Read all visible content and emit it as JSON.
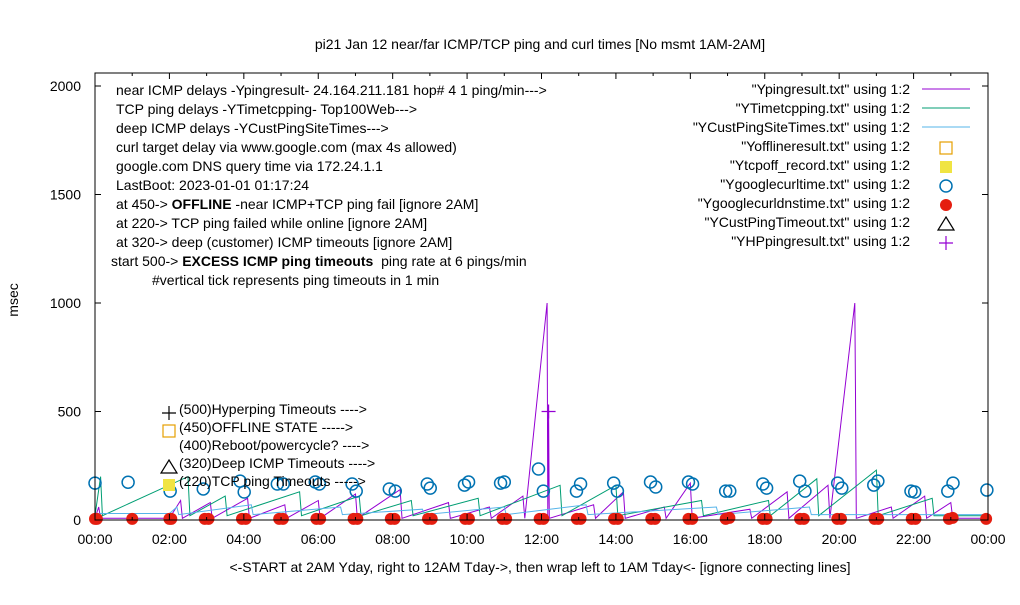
{
  "chart_data": {
    "type": "line",
    "title": "pi21 Jan 12  near/far ICMP/TCP ping and curl times [No msmt 1AM-2AM]",
    "xlabel": "<-START at 2AM Yday, right to 12AM Tday->, then wrap left to 1AM Tday<- [ignore connecting lines]",
    "ylabel": "msec",
    "xlim": [
      0,
      24
    ],
    "ylim": [
      0,
      2060
    ],
    "x_ticks": [
      "00:00",
      "02:00",
      "04:00",
      "06:00",
      "08:00",
      "10:00",
      "12:00",
      "14:00",
      "16:00",
      "18:00",
      "20:00",
      "22:00",
      "00:00"
    ],
    "y_ticks": [
      0,
      500,
      1000,
      1500,
      2000
    ],
    "grid": false,
    "legend_position": "top-right",
    "annotations": [
      "near ICMP delays -Ypingresult- 24.164.211.181 hop# 4 1 ping/min--->",
      "TCP ping delays -YTimetcpping- Top100Web--->",
      "deep ICMP delays -YCustPingSiteTimes--->",
      "curl target delay via www.google.com (max 4s allowed)",
      "google.com DNS query time via 172.24.1.1",
      "LastBoot: 2023-01-01 01:17:24"
    ],
    "notes": [
      {
        "pre": "at 450-> ",
        "bold": "OFFLINE",
        "post": " -near ICMP+TCP ping fail [ignore 2AM]"
      },
      {
        "pre": "at 220-> TCP ping failed while online [ignore 2AM]",
        "bold": "",
        "post": ""
      },
      {
        "pre": "at 320-> deep (customer) ICMP timeouts [ignore 2AM]",
        "bold": "",
        "post": ""
      },
      {
        "pre": "start 500-> ",
        "bold": "EXCESS ICMP ping timeouts",
        "post": "  ping rate at 6 pings/min"
      },
      {
        "pre": "#vertical tick represents ping timeouts in 1 min",
        "bold": "",
        "post": ""
      }
    ],
    "key_labels": [
      "(500)Hyperping Timeouts ---->",
      "(450)OFFLINE STATE ----->",
      "(400)Reboot/powercycle? ---->",
      "(320)Deep ICMP Timeouts ---->",
      "(220)TCP ping Timeouts ----->"
    ],
    "series": [
      {
        "name": "\"Ypingresult.txt\" using 1:2",
        "style": "line",
        "color": "#9400d3",
        "points": [
          [
            0,
            8
          ],
          [
            0.1,
            60
          ],
          [
            0.15,
            8
          ],
          [
            2.0,
            8
          ],
          [
            2.3,
            90
          ],
          [
            2.35,
            8
          ],
          [
            3.1,
            80
          ],
          [
            3.15,
            8
          ],
          [
            4.1,
            100
          ],
          [
            4.15,
            8
          ],
          [
            5.1,
            70
          ],
          [
            5.15,
            8
          ],
          [
            6.0,
            90
          ],
          [
            6.05,
            8
          ],
          [
            7.0,
            120
          ],
          [
            7.05,
            8
          ],
          [
            8.2,
            140
          ],
          [
            8.25,
            8
          ],
          [
            9.5,
            80
          ],
          [
            9.55,
            8
          ],
          [
            10.6,
            60
          ],
          [
            10.65,
            8
          ],
          [
            11.5,
            110
          ],
          [
            11.55,
            8
          ],
          [
            12.15,
            1000
          ],
          [
            12.17,
            8
          ],
          [
            12.19,
            500
          ],
          [
            12.21,
            8
          ],
          [
            13.4,
            70
          ],
          [
            13.45,
            8
          ],
          [
            14.2,
            130
          ],
          [
            14.25,
            8
          ],
          [
            15.3,
            60
          ],
          [
            15.35,
            8
          ],
          [
            16.0,
            170
          ],
          [
            16.05,
            8
          ],
          [
            17.6,
            50
          ],
          [
            17.65,
            8
          ],
          [
            18.6,
            130
          ],
          [
            18.65,
            8
          ],
          [
            19.7,
            160
          ],
          [
            19.75,
            8
          ],
          [
            20.42,
            1000
          ],
          [
            20.44,
            580
          ],
          [
            20.46,
            8
          ],
          [
            21.4,
            60
          ],
          [
            21.45,
            8
          ],
          [
            22.3,
            110
          ],
          [
            22.35,
            8
          ],
          [
            23.0,
            80
          ],
          [
            23.05,
            8
          ],
          [
            24,
            8
          ]
        ]
      },
      {
        "name": "\"YTimetcpping.txt\" using 1:2",
        "style": "line",
        "color": "#009e73",
        "points": [
          [
            0,
            20
          ],
          [
            0.15,
            200
          ],
          [
            0.2,
            20
          ],
          [
            2.5,
            200
          ],
          [
            2.55,
            20
          ],
          [
            3.5,
            110
          ],
          [
            3.55,
            20
          ],
          [
            5.5,
            130
          ],
          [
            5.55,
            20
          ],
          [
            7.1,
            110
          ],
          [
            7.15,
            20
          ],
          [
            8.5,
            90
          ],
          [
            8.55,
            20
          ],
          [
            10.3,
            100
          ],
          [
            10.35,
            20
          ],
          [
            12.5,
            160
          ],
          [
            12.55,
            20
          ],
          [
            14.0,
            160
          ],
          [
            14.05,
            20
          ],
          [
            16.3,
            90
          ],
          [
            16.35,
            20
          ],
          [
            18.1,
            90
          ],
          [
            18.15,
            20
          ],
          [
            19.4,
            190
          ],
          [
            19.45,
            20
          ],
          [
            21.0,
            230
          ],
          [
            21.05,
            20
          ],
          [
            22.5,
            100
          ],
          [
            22.55,
            20
          ],
          [
            24,
            20
          ]
        ]
      },
      {
        "name": "\"YCustPingSiteTimes.txt\" using 1:2",
        "style": "line",
        "color": "#56b4e9",
        "points": [
          [
            0,
            25
          ],
          [
            0.1,
            30
          ],
          [
            2.0,
            30
          ],
          [
            2.2,
            60
          ],
          [
            2.25,
            25
          ],
          [
            4.2,
            70
          ],
          [
            4.25,
            25
          ],
          [
            6.6,
            60
          ],
          [
            6.65,
            25
          ],
          [
            8.8,
            50
          ],
          [
            8.85,
            25
          ],
          [
            11.0,
            60
          ],
          [
            11.05,
            25
          ],
          [
            13.2,
            70
          ],
          [
            13.25,
            25
          ],
          [
            16.7,
            60
          ],
          [
            16.75,
            25
          ],
          [
            19.2,
            60
          ],
          [
            19.25,
            25
          ],
          [
            24,
            25
          ]
        ]
      },
      {
        "name": "\"Yofflineresult.txt\" using 1:2",
        "style": "open-square",
        "color": "#e69f00",
        "points": []
      },
      {
        "name": "\"Ytcpoff_record.txt\" using 1:2",
        "style": "filled-square",
        "color": "#f0e442",
        "points": []
      },
      {
        "name": "\"Ygooglecurltime.txt\" using 1:2",
        "style": "open-circle",
        "color": "#0072b2",
        "points": [
          [
            0.0,
            170
          ],
          [
            0.89,
            174
          ],
          [
            2.02,
            133
          ],
          [
            2.91,
            143
          ],
          [
            3.9,
            179
          ],
          [
            4.01,
            129
          ],
          [
            4.9,
            166
          ],
          [
            5.06,
            166
          ],
          [
            5.92,
            175
          ],
          [
            6.03,
            166
          ],
          [
            6.91,
            166
          ],
          [
            7.02,
            133
          ],
          [
            7.91,
            143
          ],
          [
            8.07,
            133
          ],
          [
            8.93,
            166
          ],
          [
            9.01,
            147
          ],
          [
            9.93,
            161
          ],
          [
            10.04,
            175
          ],
          [
            10.9,
            170
          ],
          [
            11.0,
            175
          ],
          [
            11.92,
            235
          ],
          [
            12.05,
            133
          ],
          [
            12.94,
            133
          ],
          [
            13.05,
            166
          ],
          [
            13.94,
            170
          ],
          [
            14.04,
            133
          ],
          [
            14.93,
            175
          ],
          [
            15.07,
            152
          ],
          [
            15.95,
            175
          ],
          [
            16.06,
            166
          ],
          [
            16.95,
            133
          ],
          [
            17.06,
            133
          ],
          [
            17.95,
            166
          ],
          [
            18.05,
            147
          ],
          [
            18.94,
            179
          ],
          [
            19.08,
            133
          ],
          [
            19.96,
            170
          ],
          [
            20.07,
            147
          ],
          [
            20.93,
            161
          ],
          [
            21.04,
            179
          ],
          [
            21.93,
            133
          ],
          [
            22.03,
            129
          ],
          [
            22.92,
            133
          ],
          [
            23.06,
            170
          ],
          [
            23.97,
            138
          ]
        ]
      },
      {
        "name": "\"Ygooglecurldnstime.txt\" using 1:2",
        "style": "filled-circle",
        "color": "#e51e10",
        "points": [
          [
            0,
            5
          ],
          [
            0.05,
            5
          ],
          [
            1.0,
            5
          ],
          [
            2.0,
            5
          ],
          [
            2.05,
            5
          ],
          [
            2.95,
            5
          ],
          [
            3.05,
            5
          ],
          [
            3.95,
            5
          ],
          [
            4.05,
            5
          ],
          [
            4.95,
            5
          ],
          [
            5.05,
            5
          ],
          [
            5.95,
            5
          ],
          [
            6.05,
            5
          ],
          [
            6.95,
            5
          ],
          [
            7.05,
            5
          ],
          [
            7.95,
            5
          ],
          [
            8.05,
            5
          ],
          [
            8.95,
            5
          ],
          [
            9.05,
            5
          ],
          [
            9.95,
            5
          ],
          [
            10.05,
            5
          ],
          [
            10.95,
            5
          ],
          [
            11.05,
            5
          ],
          [
            11.95,
            5
          ],
          [
            12.05,
            5
          ],
          [
            12.95,
            5
          ],
          [
            13.05,
            5
          ],
          [
            13.95,
            5
          ],
          [
            14.05,
            5
          ],
          [
            14.95,
            5
          ],
          [
            15.05,
            5
          ],
          [
            15.95,
            5
          ],
          [
            16.05,
            5
          ],
          [
            16.95,
            5
          ],
          [
            17.05,
            10
          ],
          [
            17.95,
            5
          ],
          [
            18.05,
            5
          ],
          [
            18.95,
            5
          ],
          [
            19.05,
            5
          ],
          [
            19.95,
            5
          ],
          [
            20.05,
            5
          ],
          [
            20.95,
            5
          ],
          [
            21.05,
            5
          ],
          [
            21.95,
            5
          ],
          [
            22.05,
            5
          ],
          [
            22.95,
            5
          ],
          [
            23.05,
            10
          ],
          [
            23.95,
            5
          ]
        ]
      },
      {
        "name": "\"YCustPingTimeout.txt\" using 1:2",
        "style": "open-triangle",
        "color": "#000000",
        "points": []
      },
      {
        "name": "\"YHPpingresult.txt\" using 1:2",
        "style": "plus",
        "color": "#9400d3",
        "points": [
          [
            12.19,
            500
          ]
        ]
      }
    ]
  }
}
